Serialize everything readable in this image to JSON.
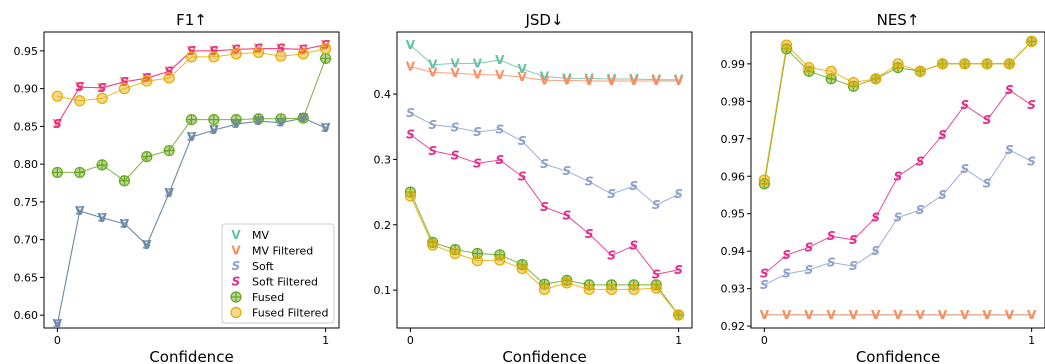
{
  "chart_data": [
    {
      "type": "line",
      "title": "F1↑",
      "xlabel": "Confidence",
      "ylabel": "",
      "x": [
        0,
        0.0833,
        0.1667,
        0.25,
        0.3333,
        0.4167,
        0.5,
        0.5833,
        0.6667,
        0.75,
        0.8333,
        0.9167,
        1
      ],
      "xlim": [
        -0.05,
        1.05
      ],
      "ylim": [
        0.583,
        0.975
      ],
      "xticks": [
        0,
        1
      ],
      "xtick_labels": [
        "0",
        "1"
      ],
      "yticks": [
        0.6,
        0.65,
        0.7,
        0.75,
        0.8,
        0.85,
        0.9,
        0.95
      ],
      "ytick_labels": [
        "0.60",
        "0.65",
        "0.70",
        "0.75",
        "0.80",
        "0.85",
        "0.90",
        "0.95"
      ],
      "legend": {
        "placement": "lower-right",
        "visible": true
      },
      "series": [
        {
          "name": "MV",
          "color": "#66c2a5",
          "marker": "v",
          "values": [
            0.588,
            0.738,
            0.729,
            0.721,
            0.693,
            0.762,
            0.836,
            0.845,
            0.853,
            0.857,
            0.855,
            0.861,
            0.848
          ]
        },
        {
          "name": "MV Filtered",
          "color": "#fc8d62",
          "marker": "v",
          "values": [
            0.853,
            0.902,
            0.901,
            0.909,
            0.914,
            0.923,
            0.95,
            0.95,
            0.952,
            0.953,
            0.953,
            0.952,
            0.958
          ]
        },
        {
          "name": "Soft",
          "color": "#8da0cb",
          "marker": "s",
          "values": [
            0.588,
            0.738,
            0.729,
            0.721,
            0.693,
            0.762,
            0.836,
            0.845,
            0.853,
            0.857,
            0.855,
            0.861,
            0.848
          ]
        },
        {
          "name": "Soft Filtered",
          "color": "#e7298a",
          "marker": "s",
          "values": [
            0.853,
            0.902,
            0.901,
            0.909,
            0.914,
            0.923,
            0.95,
            0.95,
            0.952,
            0.953,
            0.953,
            0.952,
            0.958
          ]
        },
        {
          "name": "Fused",
          "color": "#66a61e",
          "marker": "p",
          "values": [
            0.789,
            0.789,
            0.799,
            0.778,
            0.81,
            0.818,
            0.859,
            0.859,
            0.859,
            0.86,
            0.86,
            0.861,
            0.94
          ]
        },
        {
          "name": "Fused Filtered",
          "color": "#e6ab02",
          "marker": "o",
          "values": [
            0.89,
            0.884,
            0.887,
            0.9,
            0.91,
            0.914,
            0.942,
            0.942,
            0.946,
            0.948,
            0.943,
            0.946,
            0.953
          ]
        },
        {
          "name": "",
          "color": "#6f8aa3",
          "marker": "v",
          "values": [
            0.588,
            0.738,
            0.729,
            0.721,
            0.693,
            0.762,
            0.836,
            0.845,
            0.853,
            0.857,
            0.855,
            0.861,
            0.848
          ]
        }
      ]
    },
    {
      "type": "line",
      "title": "JSD↓",
      "xlabel": "Confidence",
      "ylabel": "",
      "x": [
        0,
        0.0833,
        0.1667,
        0.25,
        0.3333,
        0.4167,
        0.5,
        0.5833,
        0.6667,
        0.75,
        0.8333,
        0.9167,
        1
      ],
      "xlim": [
        -0.05,
        1.05
      ],
      "ylim": [
        0.042,
        0.495
      ],
      "xticks": [
        0,
        1
      ],
      "xtick_labels": [
        "0",
        "1"
      ],
      "yticks": [
        0.1,
        0.2,
        0.3,
        0.4
      ],
      "ytick_labels": [
        "0.1",
        "0.2",
        "0.3",
        "0.4"
      ],
      "legend": {
        "visible": false
      },
      "series": [
        {
          "name": "MV",
          "color": "#66c2a5",
          "marker": "v",
          "values": [
            0.475,
            0.445,
            0.447,
            0.447,
            0.452,
            0.438,
            0.427,
            0.424,
            0.424,
            0.423,
            0.423,
            0.422,
            0.422
          ]
        },
        {
          "name": "MV Filtered",
          "color": "#fc8d62",
          "marker": "v",
          "values": [
            0.442,
            0.433,
            0.432,
            0.43,
            0.429,
            0.426,
            0.421,
            0.421,
            0.42,
            0.42,
            0.42,
            0.42,
            0.42
          ]
        },
        {
          "name": "Soft",
          "color": "#8da0cb",
          "marker": "s",
          "values": [
            0.371,
            0.353,
            0.349,
            0.342,
            0.346,
            0.328,
            0.293,
            0.282,
            0.266,
            0.247,
            0.259,
            0.23,
            0.247
          ]
        },
        {
          "name": "Soft Filtered",
          "color": "#e7298a",
          "marker": "s",
          "values": [
            0.338,
            0.313,
            0.306,
            0.294,
            0.299,
            0.274,
            0.227,
            0.214,
            0.186,
            0.153,
            0.168,
            0.124,
            0.131
          ]
        },
        {
          "name": "Fused",
          "color": "#66a61e",
          "marker": "p",
          "values": [
            0.25,
            0.173,
            0.162,
            0.156,
            0.154,
            0.139,
            0.109,
            0.115,
            0.108,
            0.108,
            0.108,
            0.108,
            0.062
          ]
        },
        {
          "name": "Fused Filtered",
          "color": "#e6ab02",
          "marker": "o",
          "values": [
            0.244,
            0.169,
            0.156,
            0.145,
            0.146,
            0.133,
            0.101,
            0.111,
            0.101,
            0.101,
            0.101,
            0.103,
            0.062
          ]
        }
      ]
    },
    {
      "type": "line",
      "title": "NES↑",
      "xlabel": "Confidence",
      "ylabel": "",
      "x": [
        0,
        0.0833,
        0.1667,
        0.25,
        0.3333,
        0.4167,
        0.5,
        0.5833,
        0.6667,
        0.75,
        0.8333,
        0.9167,
        1
      ],
      "xlim": [
        -0.05,
        1.05
      ],
      "ylim": [
        0.9195,
        0.9985
      ],
      "xticks": [
        0,
        1
      ],
      "xtick_labels": [
        "0",
        "1"
      ],
      "yticks": [
        0.92,
        0.93,
        0.94,
        0.95,
        0.96,
        0.97,
        0.98,
        0.99
      ],
      "ytick_labels": [
        "0.92",
        "0.93",
        "0.94",
        "0.95",
        "0.96",
        "0.97",
        "0.98",
        "0.99"
      ],
      "legend": {
        "visible": false
      },
      "series": [
        {
          "name": "MV",
          "color": "#66c2a5",
          "marker": "v",
          "values": [
            0.923,
            0.923,
            0.923,
            0.923,
            0.923,
            0.923,
            0.923,
            0.923,
            0.923,
            0.923,
            0.923,
            0.923,
            0.923
          ]
        },
        {
          "name": "MV Filtered",
          "color": "#fc8d62",
          "marker": "v",
          "values": [
            0.923,
            0.923,
            0.923,
            0.923,
            0.923,
            0.923,
            0.923,
            0.923,
            0.923,
            0.923,
            0.923,
            0.923,
            0.923
          ]
        },
        {
          "name": "Soft",
          "color": "#8da0cb",
          "marker": "s",
          "values": [
            0.931,
            0.934,
            0.935,
            0.937,
            0.936,
            0.94,
            0.949,
            0.951,
            0.955,
            0.962,
            0.958,
            0.967,
            0.964
          ]
        },
        {
          "name": "Soft Filtered",
          "color": "#e7298a",
          "marker": "s",
          "values": [
            0.934,
            0.939,
            0.941,
            0.944,
            0.943,
            0.949,
            0.96,
            0.964,
            0.971,
            0.979,
            0.975,
            0.983,
            0.979
          ]
        },
        {
          "name": "Fused",
          "color": "#66a61e",
          "marker": "p",
          "values": [
            0.958,
            0.994,
            0.988,
            0.986,
            0.984,
            0.986,
            0.989,
            0.988,
            0.99,
            0.99,
            0.99,
            0.99,
            0.996
          ]
        },
        {
          "name": "Fused Filtered",
          "color": "#e6ab02",
          "marker": "o",
          "values": [
            0.959,
            0.995,
            0.989,
            0.988,
            0.985,
            0.986,
            0.99,
            0.988,
            0.99,
            0.99,
            0.99,
            0.99,
            0.996
          ]
        }
      ]
    }
  ]
}
